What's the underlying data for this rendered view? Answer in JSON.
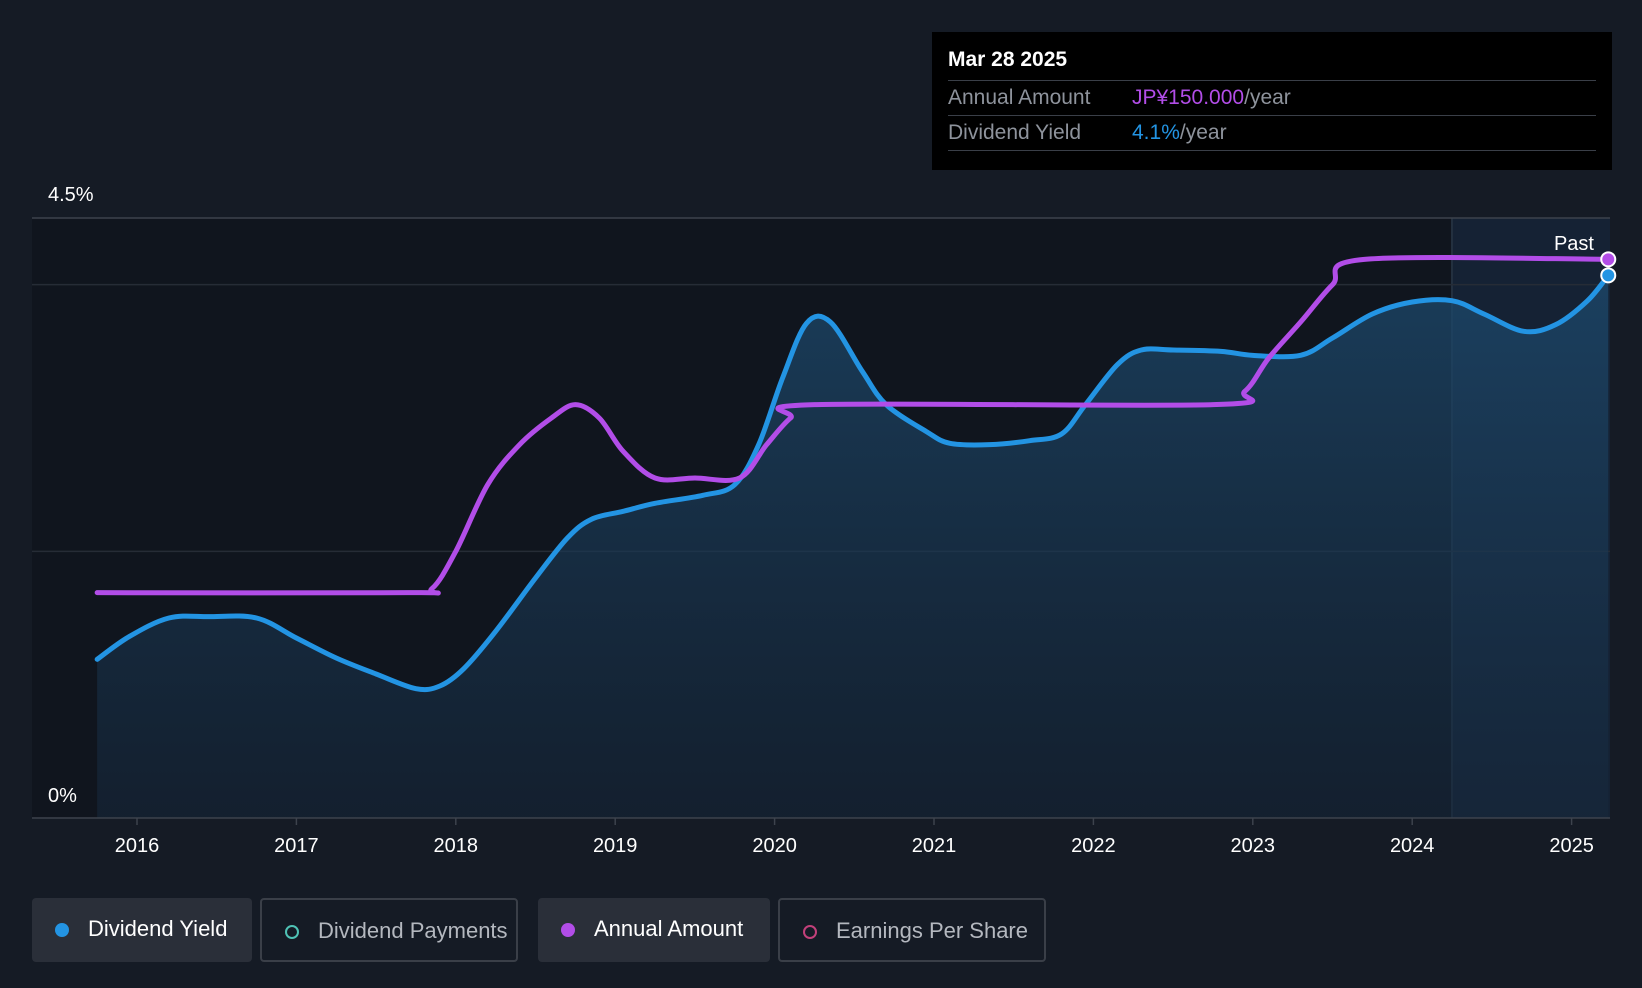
{
  "tooltip": {
    "date": "Mar 28 2025",
    "rows": [
      {
        "label": "Annual Amount",
        "value": "JP¥150.000",
        "unit": "/year",
        "color": "#b24de8"
      },
      {
        "label": "Dividend Yield",
        "value": "4.1%",
        "unit": "/year",
        "color": "#2394e3"
      }
    ]
  },
  "legend": [
    {
      "label": "Dividend Yield",
      "color": "#2394e3",
      "filled": true,
      "active": true
    },
    {
      "label": "Dividend Payments",
      "color": "#4fc2b5",
      "filled": false,
      "active": false
    },
    {
      "label": "Annual Amount",
      "color": "#b24de8",
      "filled": true,
      "active": true
    },
    {
      "label": "Earnings Per Share",
      "color": "#c2407a",
      "filled": false,
      "active": false
    }
  ],
  "chart_data": {
    "type": "line",
    "past_label": "Past",
    "y_axis": {
      "min": 0,
      "max": 4.5,
      "unit": "%",
      "tick_labels": [
        "0%",
        "4.5%"
      ]
    },
    "x_ticks": [
      "2016",
      "2017",
      "2018",
      "2019",
      "2020",
      "2021",
      "2022",
      "2023",
      "2024",
      "2025"
    ],
    "series": [
      {
        "name": "Dividend Yield",
        "color": "#2394e3",
        "unit": "%",
        "fill": true,
        "points": [
          [
            2015.75,
            1.19
          ],
          [
            2015.95,
            1.36
          ],
          [
            2016.2,
            1.5
          ],
          [
            2016.45,
            1.51
          ],
          [
            2016.75,
            1.5
          ],
          [
            2017.0,
            1.35
          ],
          [
            2017.25,
            1.2
          ],
          [
            2017.5,
            1.08
          ],
          [
            2017.75,
            0.97
          ],
          [
            2017.9,
            0.99
          ],
          [
            2018.05,
            1.12
          ],
          [
            2018.25,
            1.4
          ],
          [
            2018.5,
            1.8
          ],
          [
            2018.7,
            2.1
          ],
          [
            2018.85,
            2.24
          ],
          [
            2019.05,
            2.3
          ],
          [
            2019.25,
            2.36
          ],
          [
            2019.55,
            2.42
          ],
          [
            2019.75,
            2.5
          ],
          [
            2019.9,
            2.8
          ],
          [
            2020.05,
            3.3
          ],
          [
            2020.2,
            3.71
          ],
          [
            2020.35,
            3.72
          ],
          [
            2020.55,
            3.35
          ],
          [
            2020.7,
            3.1
          ],
          [
            2020.95,
            2.9
          ],
          [
            2021.1,
            2.81
          ],
          [
            2021.35,
            2.8
          ],
          [
            2021.6,
            2.83
          ],
          [
            2021.8,
            2.88
          ],
          [
            2021.95,
            3.1
          ],
          [
            2022.15,
            3.4
          ],
          [
            2022.3,
            3.51
          ],
          [
            2022.5,
            3.51
          ],
          [
            2022.8,
            3.5
          ],
          [
            2023.0,
            3.47
          ],
          [
            2023.3,
            3.47
          ],
          [
            2023.5,
            3.6
          ],
          [
            2023.75,
            3.78
          ],
          [
            2024.0,
            3.87
          ],
          [
            2024.25,
            3.88
          ],
          [
            2024.45,
            3.78
          ],
          [
            2024.7,
            3.65
          ],
          [
            2024.9,
            3.7
          ],
          [
            2025.1,
            3.88
          ],
          [
            2025.23,
            4.07
          ]
        ]
      },
      {
        "name": "Annual Amount",
        "color": "#b24de8",
        "fill": false,
        "points": [
          [
            2015.75,
            1.69
          ],
          [
            2017.7,
            1.69
          ],
          [
            2017.85,
            1.72
          ],
          [
            2018.0,
            2.0
          ],
          [
            2018.2,
            2.5
          ],
          [
            2018.4,
            2.8
          ],
          [
            2018.6,
            3.0
          ],
          [
            2018.75,
            3.1
          ],
          [
            2018.9,
            3.0
          ],
          [
            2019.05,
            2.75
          ],
          [
            2019.25,
            2.55
          ],
          [
            2019.5,
            2.55
          ],
          [
            2019.78,
            2.55
          ],
          [
            2019.95,
            2.8
          ],
          [
            2020.1,
            3.0
          ],
          [
            2020.25,
            3.1
          ],
          [
            2022.75,
            3.1
          ],
          [
            2022.95,
            3.2
          ],
          [
            2023.1,
            3.45
          ],
          [
            2023.3,
            3.72
          ],
          [
            2023.5,
            4.0
          ],
          [
            2023.7,
            4.19
          ],
          [
            2025.23,
            4.19
          ]
        ]
      }
    ],
    "grid": true
  }
}
